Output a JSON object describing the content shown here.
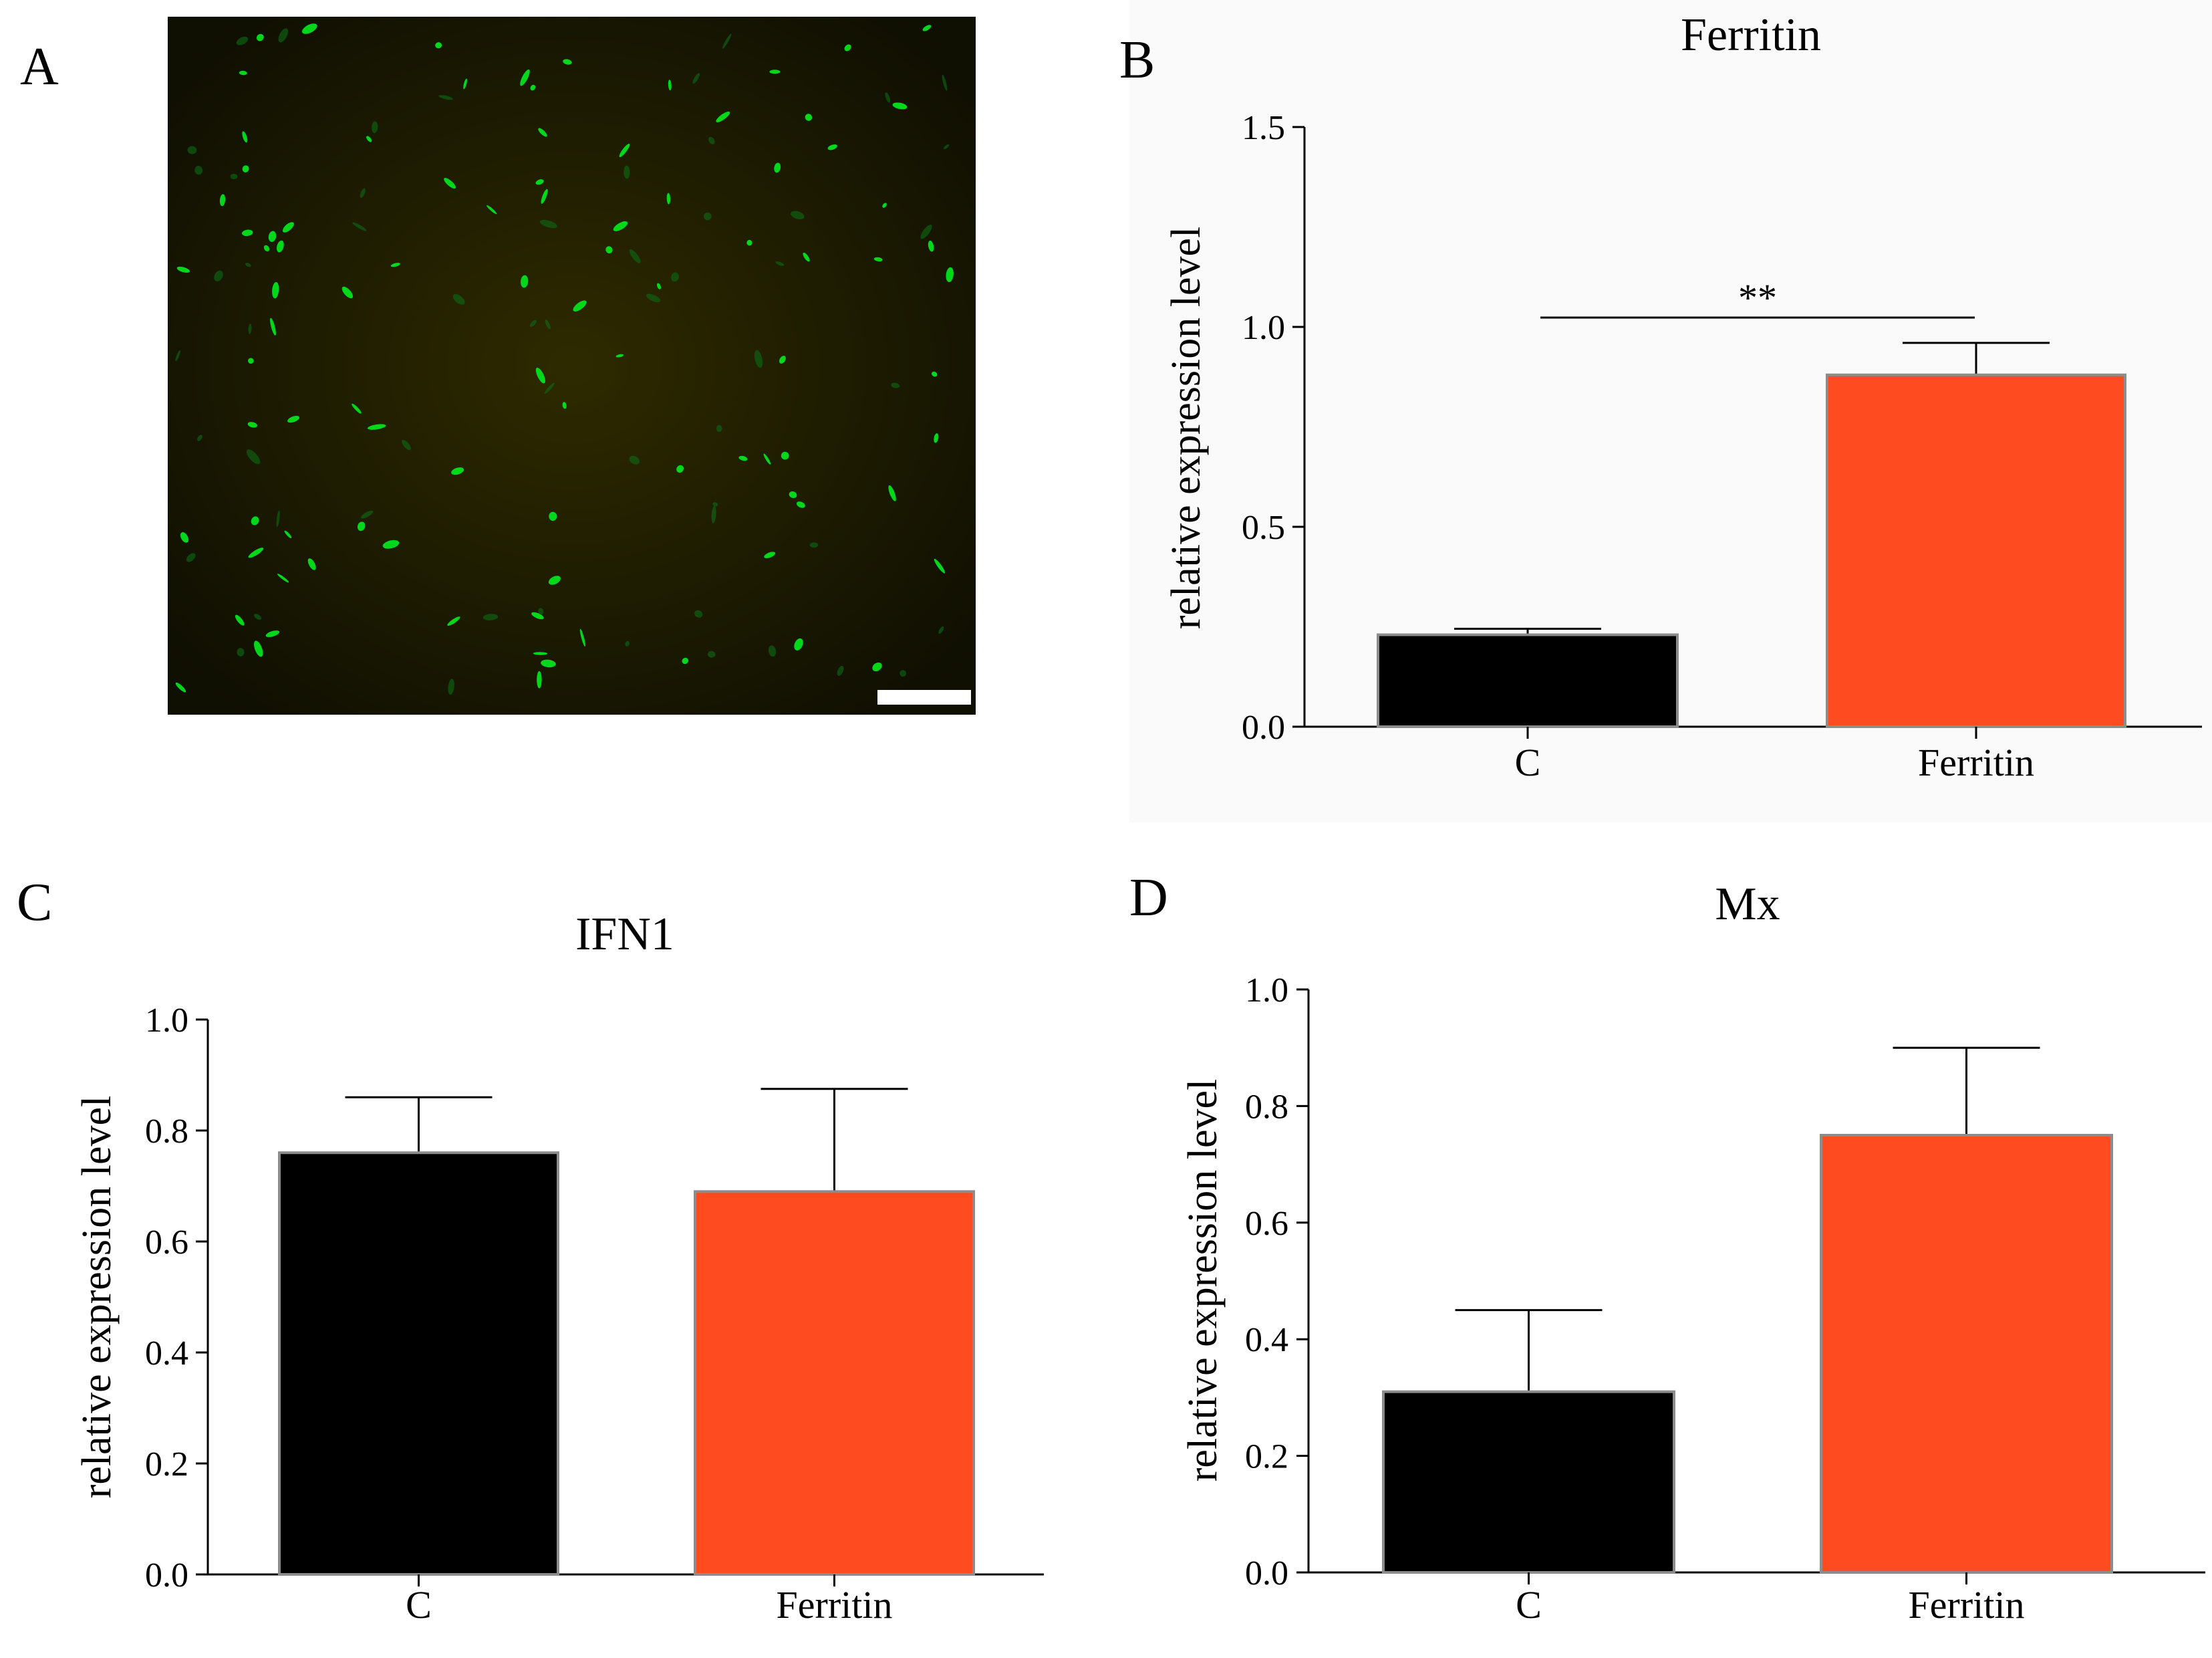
{
  "panels": {
    "a": "A",
    "b": "B",
    "c": "C",
    "d": "D"
  },
  "colors": {
    "control": "#000000",
    "ferritin": "#ff4b1f",
    "bar_edge": "#8c8c8c",
    "micro_bg": "#1a1a00",
    "micro_cell": "#00e21c"
  },
  "chart_data": [
    {
      "panel": "B",
      "type": "bar",
      "title": "Ferritin",
      "ylabel": "relative expression level",
      "xlabel": "",
      "categories": [
        "C",
        "Ferritin"
      ],
      "values": [
        0.23,
        0.88
      ],
      "errors": [
        0.015,
        0.08
      ],
      "ylim": [
        0.0,
        1.5
      ],
      "yticks": [
        "0.0",
        "0.5",
        "1.0",
        "1.5"
      ],
      "significance": "**"
    },
    {
      "panel": "C",
      "type": "bar",
      "title": "IFN1",
      "ylabel": "relative expression level",
      "xlabel": "",
      "categories": [
        "C",
        "Ferritin"
      ],
      "values": [
        0.76,
        0.69
      ],
      "errors": [
        0.1,
        0.185
      ],
      "ylim": [
        0.0,
        1.0
      ],
      "yticks": [
        "0.0",
        "0.2",
        "0.4",
        "0.6",
        "0.8",
        "1.0"
      ]
    },
    {
      "panel": "D",
      "type": "bar",
      "title": "Mx",
      "ylabel": "relative expression level",
      "xlabel": "",
      "categories": [
        "C",
        "Ferritin"
      ],
      "values": [
        0.31,
        0.75
      ],
      "errors": [
        0.14,
        0.15
      ],
      "ylim": [
        0.0,
        1.0
      ],
      "yticks": [
        "0.0",
        "0.2",
        "0.4",
        "0.6",
        "0.8",
        "1.0"
      ]
    }
  ]
}
